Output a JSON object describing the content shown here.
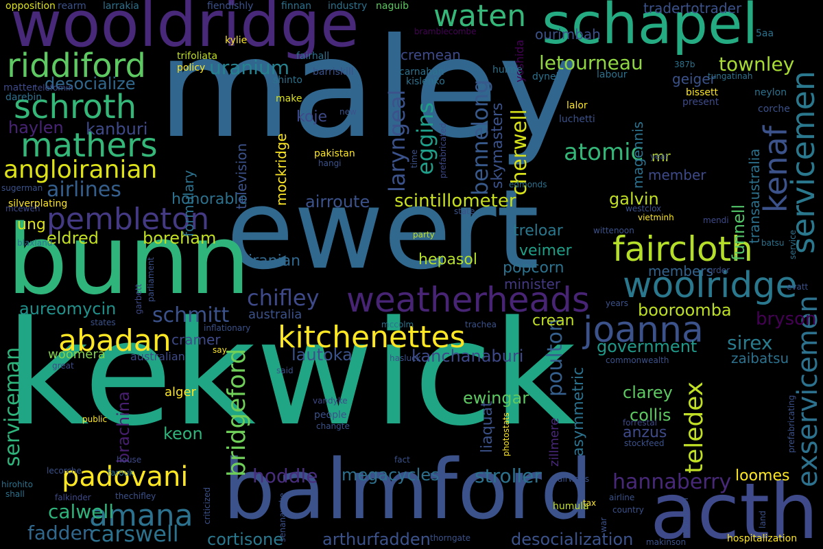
{
  "words": [
    {
      "text": "kekwick",
      "color": "#21a685"
    },
    {
      "text": "maley",
      "color": "#31668e"
    },
    {
      "text": "ewert",
      "color": "#31688e"
    },
    {
      "text": "bunn",
      "color": "#2fb47c"
    },
    {
      "text": "balmford",
      "color": "#3b528b"
    },
    {
      "text": "wooldridge",
      "color": "#482878"
    },
    {
      "text": "schapel",
      "color": "#25ab82"
    },
    {
      "text": "acth",
      "color": "#3e4a89"
    },
    {
      "text": "weatherheads",
      "color": "#482475"
    },
    {
      "text": "faircloth",
      "color": "#b5de2b"
    },
    {
      "text": "woolridge",
      "color": "#2a788e"
    },
    {
      "text": "kitchenettes",
      "color": "#fde725"
    },
    {
      "text": "abadan",
      "color": "#fde725"
    },
    {
      "text": "joanna",
      "color": "#3b528b"
    },
    {
      "text": "riddiford",
      "color": "#5ec962"
    },
    {
      "text": "schroth",
      "color": "#35b779"
    },
    {
      "text": "mathers",
      "color": "#35b779"
    },
    {
      "text": "pembleton",
      "color": "#443983"
    },
    {
      "text": "angloiranian",
      "color": "#dde318"
    },
    {
      "text": "amana",
      "color": "#2c728e"
    },
    {
      "text": "padovani",
      "color": "#fde725"
    },
    {
      "text": "waten",
      "color": "#35b779"
    },
    {
      "text": "servicemen",
      "color": "#2a788e"
    },
    {
      "text": "kenaf",
      "color": "#3b528b"
    },
    {
      "text": "exservicemen",
      "color": "#2c728e"
    },
    {
      "text": "serviceman",
      "color": "#2fb47c"
    },
    {
      "text": "bridgeford",
      "color": "#6ece58"
    },
    {
      "text": "teledex",
      "color": "#c0df25"
    },
    {
      "text": "chifley",
      "color": "#3e4a89"
    },
    {
      "text": "schmitt",
      "color": "#3b528b"
    },
    {
      "text": "carswell",
      "color": "#2c728e"
    },
    {
      "text": "airlines",
      "color": "#355f8d"
    },
    {
      "text": "uranium",
      "color": "#26828e"
    },
    {
      "text": "letourneau",
      "color": "#90d743"
    },
    {
      "text": "townley",
      "color": "#a8db34"
    },
    {
      "text": "atomic",
      "color": "#35b779"
    },
    {
      "text": "cherwell",
      "color": "#d8e219"
    },
    {
      "text": "bennelong",
      "color": "#38598c"
    },
    {
      "text": "eggins",
      "color": "#1f9e89"
    },
    {
      "text": "laryngeal",
      "color": "#3b528b"
    },
    {
      "text": "hannaberry",
      "color": "#482878"
    },
    {
      "text": "booroomba",
      "color": "#bddf26"
    },
    {
      "text": "scintillometer",
      "color": "#c8e020"
    },
    {
      "text": "poulton",
      "color": "#355f8d"
    },
    {
      "text": "bryson",
      "color": "#440154"
    },
    {
      "text": "sirex",
      "color": "#287c8e"
    },
    {
      "text": "government",
      "color": "#1f9a8a"
    },
    {
      "text": "kanchanaburi",
      "color": "#3e4a89"
    },
    {
      "text": "lautoka",
      "color": "#3b528b"
    },
    {
      "text": "stroller",
      "color": "#2c728e"
    },
    {
      "text": "megacycles",
      "color": "#2d708e"
    },
    {
      "text": "hoddle",
      "color": "#472d7b"
    },
    {
      "text": "calwell",
      "color": "#2fb47c"
    },
    {
      "text": "fadden",
      "color": "#31688e"
    },
    {
      "text": "cortisone",
      "color": "#2a788e"
    },
    {
      "text": "arthurfadden",
      "color": "#3b528b"
    },
    {
      "text": "desocialization",
      "color": "#3b528b"
    },
    {
      "text": "loomes",
      "color": "#fde725"
    },
    {
      "text": "aureomycin",
      "color": "#21918c"
    },
    {
      "text": "eldred",
      "color": "#c2df23"
    },
    {
      "text": "boreham",
      "color": "#c2df23"
    },
    {
      "text": "kanburi",
      "color": "#3e4a89"
    },
    {
      "text": "haylen",
      "color": "#482475"
    },
    {
      "text": "desocialize",
      "color": "#31688e"
    },
    {
      "text": "honorable",
      "color": "#2c728e"
    },
    {
      "text": "airroute",
      "color": "#3b528b"
    },
    {
      "text": "galvin",
      "color": "#c2df23"
    },
    {
      "text": "member",
      "color": "#3e4a89"
    },
    {
      "text": "treloar",
      "color": "#2a788e"
    },
    {
      "text": "veimer",
      "color": "#1fa088"
    },
    {
      "text": "popcorn",
      "color": "#2c728e"
    },
    {
      "text": "minister",
      "color": "#443983"
    },
    {
      "text": "hepasol",
      "color": "#b5de2b"
    },
    {
      "text": "iranian",
      "color": "#31688e"
    },
    {
      "text": "members",
      "color": "#33638d"
    },
    {
      "text": "funnell",
      "color": "#52c569"
    },
    {
      "text": "transaustralia",
      "color": "#2c728e"
    },
    {
      "text": "ewingar",
      "color": "#5ec962"
    },
    {
      "text": "liaquat",
      "color": "#3b528b"
    },
    {
      "text": "keon",
      "color": "#2fb47c"
    },
    {
      "text": "clarey",
      "color": "#5ec962"
    },
    {
      "text": "collis",
      "color": "#5ec962"
    },
    {
      "text": "anzus",
      "color": "#3e4a89"
    },
    {
      "text": "asymmetric",
      "color": "#2c728e"
    },
    {
      "text": "brachina",
      "color": "#481f70"
    },
    {
      "text": "woomera",
      "color": "#84d44b"
    },
    {
      "text": "cramer",
      "color": "#3e4a89"
    },
    {
      "text": "crean",
      "color": "#c0df25"
    },
    {
      "text": "zaibatsu",
      "color": "#2c728e"
    },
    {
      "text": "koje",
      "color": "#3e4a89"
    },
    {
      "text": "mr",
      "color": "#c0df25"
    },
    {
      "text": "skymasters",
      "color": "#3b528b"
    },
    {
      "text": "magennis",
      "color": "#2c728e"
    },
    {
      "text": "cremean",
      "color": "#3e4a89"
    },
    {
      "text": "ourimbah",
      "color": "#3b528b"
    },
    {
      "text": "tradertotrader",
      "color": "#3b528b"
    },
    {
      "text": "geiger",
      "color": "#3b528b"
    },
    {
      "text": "ung",
      "color": "#dde318"
    },
    {
      "text": "formulary",
      "color": "#2c728e"
    },
    {
      "text": "television",
      "color": "#3b528b"
    },
    {
      "text": "mockridge",
      "color": "#fde725"
    },
    {
      "text": "australia",
      "color": "#3b528b"
    },
    {
      "text": "australian",
      "color": "#3e4a89"
    },
    {
      "text": "alger",
      "color": "#fde725"
    },
    {
      "text": "zillmere",
      "color": "#482878"
    },
    {
      "text": "yoshida",
      "color": "#440154"
    },
    {
      "text": "hulme",
      "color": "#2c728e"
    },
    {
      "text": "opposition",
      "color": "#dde318"
    },
    {
      "text": "rearm",
      "color": "#3b528b"
    },
    {
      "text": "larrakia",
      "color": "#2c728e"
    },
    {
      "text": "fiendishly",
      "color": "#3b528b"
    },
    {
      "text": "finnan",
      "color": "#2c728e"
    },
    {
      "text": "industry",
      "color": "#2c728e"
    },
    {
      "text": "naguib",
      "color": "#5ec962"
    },
    {
      "text": "kylie",
      "color": "#fde725"
    },
    {
      "text": "bramblecombe",
      "color": "#440154"
    },
    {
      "text": "trifoliata",
      "color": "#c2df23"
    },
    {
      "text": "fairhall",
      "color": "#2c728e"
    },
    {
      "text": "policy",
      "color": "#fde725"
    },
    {
      "text": "shinto",
      "color": "#2c728e"
    },
    {
      "text": "barriskill",
      "color": "#3b528b"
    },
    {
      "text": "carnahan",
      "color": "#2c728e"
    },
    {
      "text": "kislenko",
      "color": "#2c728e"
    },
    {
      "text": "dynel",
      "color": "#2c728e"
    },
    {
      "text": "387b",
      "color": "#2c728e"
    },
    {
      "text": "5aa",
      "color": "#2c728e"
    },
    {
      "text": "labour",
      "color": "#2c728e"
    },
    {
      "text": "tungatinah",
      "color": "#2c728e"
    },
    {
      "text": "bissett",
      "color": "#fde725"
    },
    {
      "text": "present",
      "color": "#3e4a89"
    },
    {
      "text": "neylon",
      "color": "#2c728e"
    },
    {
      "text": "corche",
      "color": "#3b528b"
    },
    {
      "text": "lalor",
      "color": "#fde725"
    },
    {
      "text": "luchetti",
      "color": "#3b528b"
    },
    {
      "text": "matter",
      "color": "#3e4a89"
    },
    {
      "text": "telefomin",
      "color": "#3e4a89"
    },
    {
      "text": "darebin",
      "color": "#2c728e"
    },
    {
      "text": "make",
      "color": "#dde318"
    },
    {
      "text": "new",
      "color": "#3b528b"
    },
    {
      "text": "prefabricated",
      "color": "#3e4a89"
    },
    {
      "text": "pakistan",
      "color": "#fde725"
    },
    {
      "text": "hangi",
      "color": "#3b528b"
    },
    {
      "text": "time",
      "color": "#3b528b"
    },
    {
      "text": "year",
      "color": "#3b528b"
    },
    {
      "text": "edmonds",
      "color": "#2c728e"
    },
    {
      "text": "sugerman",
      "color": "#3b528b"
    },
    {
      "text": "silverplating",
      "color": "#fde725"
    },
    {
      "text": "mcewen",
      "color": "#3e4a89"
    },
    {
      "text": "blaxland",
      "color": "#2c728e"
    },
    {
      "text": "westclox",
      "color": "#3b528b"
    },
    {
      "text": "vietminh",
      "color": "#fde725"
    },
    {
      "text": "state",
      "color": "#3b528b"
    },
    {
      "text": "mendi",
      "color": "#3e4a89"
    },
    {
      "text": "batsu",
      "color": "#2c728e"
    },
    {
      "text": "party",
      "color": "#c2df23"
    },
    {
      "text": "wittenoon",
      "color": "#3b528b"
    },
    {
      "text": "service",
      "color": "#2c728e"
    },
    {
      "text": "parliament",
      "color": "#3b528b"
    },
    {
      "text": "garbett",
      "color": "#3e4a89"
    },
    {
      "text": "order",
      "color": "#3b528b"
    },
    {
      "text": "evatt",
      "color": "#3b528b"
    },
    {
      "text": "years",
      "color": "#3b528b"
    },
    {
      "text": "states",
      "color": "#3b528b"
    },
    {
      "text": "inflationary",
      "color": "#3b528b"
    },
    {
      "text": "mccolm",
      "color": "#2c728e"
    },
    {
      "text": "trachea",
      "color": "#3b528b"
    },
    {
      "text": "say",
      "color": "#fde725"
    },
    {
      "text": "hasluck",
      "color": "#3b528b"
    },
    {
      "text": "commonwealth",
      "color": "#3b528b"
    },
    {
      "text": "great",
      "color": "#3e4a89"
    },
    {
      "text": "said",
      "color": "#3b528b"
    },
    {
      "text": "public",
      "color": "#fde725"
    },
    {
      "text": "vandyke",
      "color": "#3e4a89"
    },
    {
      "text": "people",
      "color": "#3b528b"
    },
    {
      "text": "changte",
      "color": "#3b528b"
    },
    {
      "text": "photostats",
      "color": "#fde725"
    },
    {
      "text": "forrestal",
      "color": "#3e4a89"
    },
    {
      "text": "stockfeed",
      "color": "#3b528b"
    },
    {
      "text": "prefabricating",
      "color": "#3b528b"
    },
    {
      "text": "house",
      "color": "#3e4a89"
    },
    {
      "text": "farouk",
      "color": "#2c728e"
    },
    {
      "text": "fact",
      "color": "#3b528b"
    },
    {
      "text": "lecorche",
      "color": "#3b528b"
    },
    {
      "text": "hirohito",
      "color": "#2c728e"
    },
    {
      "text": "shall",
      "color": "#2c728e"
    },
    {
      "text": "falkinder",
      "color": "#3e4a89"
    },
    {
      "text": "thechifley",
      "color": "#3b528b"
    },
    {
      "text": "criticized",
      "color": "#3b528b"
    },
    {
      "text": "airways",
      "color": "#3b528b"
    },
    {
      "text": "airline",
      "color": "#3b528b"
    },
    {
      "text": "humula",
      "color": "#c2df23"
    },
    {
      "text": "tax",
      "color": "#fde725"
    },
    {
      "text": "country",
      "color": "#3b528b"
    },
    {
      "text": "war",
      "color": "#3b528b"
    },
    {
      "text": "wandoan",
      "color": "#3b528b"
    },
    {
      "text": "land",
      "color": "#3b528b"
    },
    {
      "text": "senanayake",
      "color": "#3b528b"
    },
    {
      "text": "thorngate",
      "color": "#3b528b"
    },
    {
      "text": "makinson",
      "color": "#3b528b"
    },
    {
      "text": "hospitalization",
      "color": "#fde725"
    }
  ]
}
